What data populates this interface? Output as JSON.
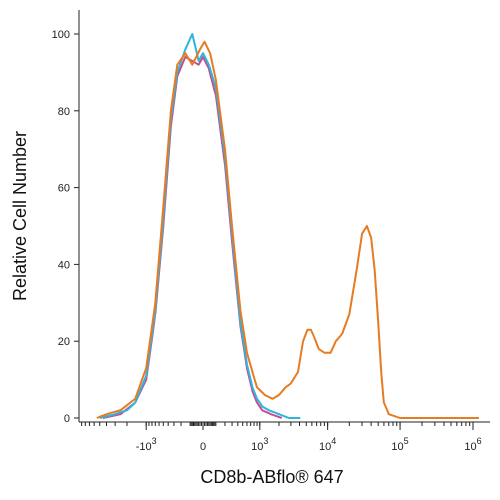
{
  "chart_data": {
    "type": "line",
    "title": "",
    "xlabel": "CD8b-ABflo® 647",
    "ylabel": "Relative Cell Number",
    "ylim": [
      0,
      100
    ],
    "x_scale": "biexponential",
    "x_ticks": [
      {
        "value": -1000,
        "label_base": "-10",
        "label_exp": "3"
      },
      {
        "value": 0,
        "label_base": "0",
        "label_exp": ""
      },
      {
        "value": 1000,
        "label_base": "10",
        "label_exp": "3"
      },
      {
        "value": 10000,
        "label_base": "10",
        "label_exp": "4"
      },
      {
        "value": 100000,
        "label_base": "10",
        "label_exp": "5"
      },
      {
        "value": 1000000,
        "label_base": "10",
        "label_exp": "6"
      }
    ],
    "y_ticks": [
      0,
      20,
      40,
      60,
      80,
      100
    ],
    "grid": false,
    "legend": "none",
    "series": [
      {
        "color": "#e87a1f",
        "points": [
          [
            -5500,
            0
          ],
          [
            -4000,
            1
          ],
          [
            -2500,
            2
          ],
          [
            -1500,
            5
          ],
          [
            -1000,
            13
          ],
          [
            -700,
            30
          ],
          [
            -500,
            55
          ],
          [
            -350,
            80
          ],
          [
            -250,
            92
          ],
          [
            -150,
            95
          ],
          [
            -80,
            92
          ],
          [
            -20,
            96
          ],
          [
            10,
            98
          ],
          [
            50,
            95
          ],
          [
            100,
            88
          ],
          [
            200,
            70
          ],
          [
            300,
            50
          ],
          [
            450,
            28
          ],
          [
            600,
            17
          ],
          [
            750,
            12
          ],
          [
            900,
            8
          ],
          [
            1200,
            6
          ],
          [
            1600,
            5
          ],
          [
            2000,
            6
          ],
          [
            2500,
            8
          ],
          [
            3000,
            9
          ],
          [
            3800,
            12
          ],
          [
            4500,
            20
          ],
          [
            5200,
            23
          ],
          [
            5800,
            23
          ],
          [
            6500,
            21
          ],
          [
            7500,
            18
          ],
          [
            9000,
            17
          ],
          [
            11000,
            17
          ],
          [
            13000,
            20
          ],
          [
            16000,
            22
          ],
          [
            20000,
            27
          ],
          [
            25000,
            38
          ],
          [
            30000,
            48
          ],
          [
            35000,
            50
          ],
          [
            40000,
            47
          ],
          [
            45000,
            38
          ],
          [
            50000,
            25
          ],
          [
            55000,
            12
          ],
          [
            60000,
            4
          ],
          [
            70000,
            1
          ],
          [
            100000,
            0
          ],
          [
            1200000,
            0
          ]
        ]
      },
      {
        "color": "#2bb5e0",
        "points": [
          [
            -5000,
            0
          ],
          [
            -3000,
            1
          ],
          [
            -2000,
            2
          ],
          [
            -1500,
            4
          ],
          [
            -1000,
            11
          ],
          [
            -700,
            28
          ],
          [
            -500,
            52
          ],
          [
            -350,
            78
          ],
          [
            -250,
            90
          ],
          [
            -150,
            96
          ],
          [
            -80,
            100
          ],
          [
            -30,
            93
          ],
          [
            0,
            95
          ],
          [
            40,
            92
          ],
          [
            100,
            86
          ],
          [
            200,
            68
          ],
          [
            300,
            48
          ],
          [
            450,
            25
          ],
          [
            600,
            14
          ],
          [
            750,
            8
          ],
          [
            900,
            5
          ],
          [
            1100,
            3
          ],
          [
            1400,
            2
          ],
          [
            2000,
            1
          ],
          [
            2800,
            0
          ],
          [
            4000,
            0
          ]
        ]
      },
      {
        "color": "#c7508a",
        "points": [
          [
            -4500,
            0
          ],
          [
            -2500,
            1
          ],
          [
            -1500,
            4
          ],
          [
            -1000,
            10
          ],
          [
            -700,
            27
          ],
          [
            -500,
            50
          ],
          [
            -350,
            76
          ],
          [
            -250,
            89
          ],
          [
            -150,
            94
          ],
          [
            -80,
            93
          ],
          [
            -30,
            92
          ],
          [
            0,
            94
          ],
          [
            40,
            91
          ],
          [
            100,
            84
          ],
          [
            200,
            66
          ],
          [
            300,
            46
          ],
          [
            450,
            24
          ],
          [
            600,
            13
          ],
          [
            750,
            7
          ],
          [
            900,
            4
          ],
          [
            1100,
            2
          ],
          [
            1500,
            1
          ],
          [
            2200,
            0
          ]
        ]
      }
    ]
  }
}
